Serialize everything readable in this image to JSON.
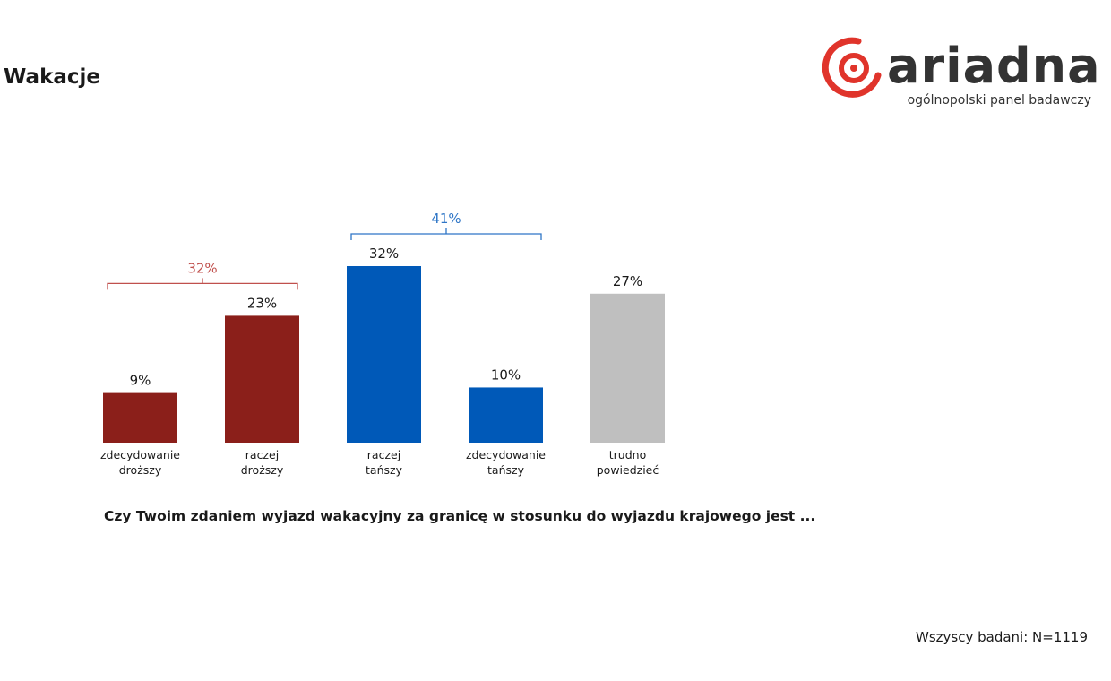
{
  "header": {
    "title": "Wakacje",
    "logo_word": "ariadna",
    "logo_tagline": "ogólnopolski panel badawczy"
  },
  "colors": {
    "expensive": "#8b1f1a",
    "cheaper": "#0059b8",
    "hard_to_say": "#bfbfbf",
    "logo_accent": "#e0342b"
  },
  "chart_data": {
    "type": "bar",
    "categories": [
      [
        "zdecydowanie",
        "droższy"
      ],
      [
        "raczej",
        "droższy"
      ],
      [
        "raczej",
        "tańszy"
      ],
      [
        "zdecydowanie",
        "tańszy"
      ],
      [
        "trudno",
        "powiedzieć"
      ]
    ],
    "values": [
      9,
      23,
      32,
      10,
      27
    ],
    "value_labels": [
      "9%",
      "23%",
      "32%",
      "10%",
      "27%"
    ],
    "bar_colors": [
      "#8b1f1a",
      "#8b1f1a",
      "#0059b8",
      "#0059b8",
      "#bfbfbf"
    ],
    "groups": [
      {
        "label": "32%",
        "bars": [
          0,
          1
        ],
        "color": "#c0504d"
      },
      {
        "label": "41%",
        "bars": [
          2,
          3
        ],
        "color": "#2e75c6"
      }
    ],
    "ylim": [
      0,
      32
    ],
    "grid": false,
    "legend": false
  },
  "footer": {
    "question": "Czy Twoim zdaniem wyjazd wakacyjny za granicę w stosunku do wyjazdu krajowego jest ...",
    "base": "Wszyscy badani: N=1119"
  }
}
